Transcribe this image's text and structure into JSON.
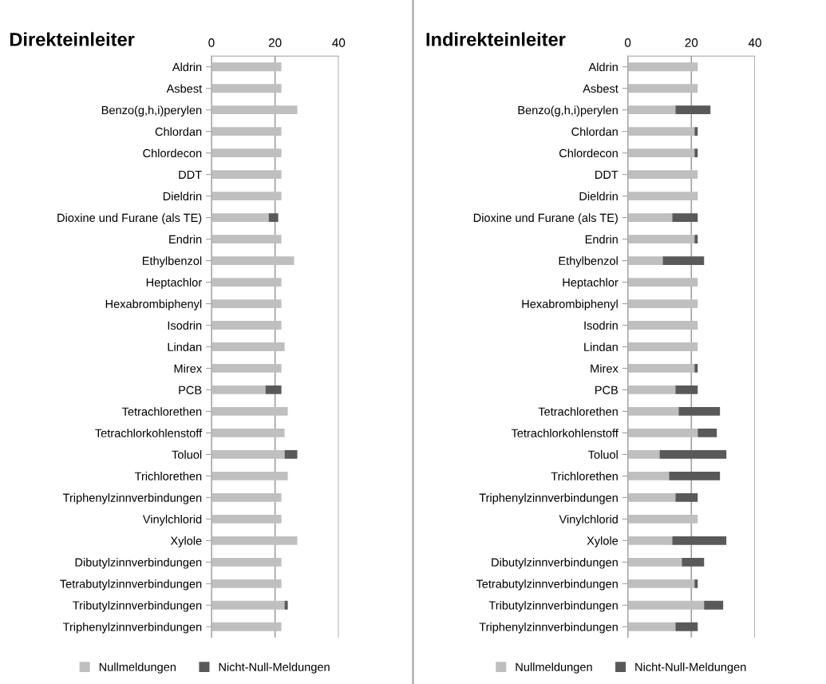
{
  "chart_data": [
    {
      "type": "bar",
      "title": "Direkteinleiter",
      "orientation": "horizontal",
      "stacked": true,
      "grid": "x",
      "legend": "bottom",
      "categories": [
        "Aldrin",
        "Asbest",
        "Benzo(g,h,i)perylen",
        "Chlordan",
        "Chlordecon",
        "DDT",
        "Dieldrin",
        "Dioxine und Furane (als TE)",
        "Endrin",
        "Ethylbenzol",
        "Heptachlor",
        "Hexabrombiphenyl",
        "Isodrin",
        "Lindan",
        "Mirex",
        "PCB",
        "Tetrachlorethen",
        "Tetrachlorkohlenstoff",
        "Toluol",
        "Trichlorethen",
        "Triphenylzinnverbindungen",
        "Vinylchlorid",
        "Xylole",
        "Dibutylzinnverbindungen",
        "Tetrabutylzinnverbindungen",
        "Tributylzinnverbindungen",
        "Triphenylzinnverbindungen"
      ],
      "xlim": [
        0,
        40
      ],
      "xticks": [
        0,
        20,
        40
      ],
      "series": [
        {
          "name": "Nullmeldungen",
          "color": "#bfbfbf",
          "values": [
            22,
            22,
            27,
            22,
            22,
            22,
            22,
            18,
            22,
            26,
            22,
            22,
            22,
            23,
            22,
            17,
            24,
            23,
            23,
            24,
            22,
            22,
            27,
            22,
            22,
            23,
            22
          ]
        },
        {
          "name": "Nicht-Null-Meldungen",
          "color": "#595959",
          "values": [
            0,
            0,
            0,
            0,
            0,
            0,
            0,
            3,
            0,
            0,
            0,
            0,
            0,
            0,
            0,
            5,
            0,
            0,
            4,
            0,
            0,
            0,
            0,
            0,
            0,
            1,
            0
          ]
        }
      ]
    },
    {
      "type": "bar",
      "title": "Indirekteinleiter",
      "orientation": "horizontal",
      "stacked": true,
      "grid": "x",
      "legend": "bottom",
      "categories": [
        "Aldrin",
        "Asbest",
        "Benzo(g,h,i)perylen",
        "Chlordan",
        "Chlordecon",
        "DDT",
        "Dieldrin",
        "Dioxine und Furane (als TE)",
        "Endrin",
        "Ethylbenzol",
        "Heptachlor",
        "Hexabrombiphenyl",
        "Isodrin",
        "Lindan",
        "Mirex",
        "PCB",
        "Tetrachlorethen",
        "Tetrachlorkohlenstoff",
        "Toluol",
        "Trichlorethen",
        "Triphenylzinnverbindungen",
        "Vinylchlorid",
        "Xylole",
        "Dibutylzinnverbindungen",
        "Tetrabutylzinnverbindungen",
        "Tributylzinnverbindungen",
        "Triphenylzinnverbindungen"
      ],
      "xlim": [
        0,
        40
      ],
      "xticks": [
        0,
        20,
        40
      ],
      "series": [
        {
          "name": "Nullmeldungen",
          "color": "#bfbfbf",
          "values": [
            22,
            22,
            15,
            21,
            21,
            22,
            22,
            14,
            21,
            11,
            22,
            22,
            22,
            22,
            21,
            15,
            16,
            22,
            10,
            13,
            15,
            22,
            14,
            17,
            21,
            24,
            15
          ]
        },
        {
          "name": "Nicht-Null-Meldungen",
          "color": "#595959",
          "values": [
            0,
            0,
            11,
            1,
            1,
            0,
            0,
            8,
            1,
            13,
            0,
            0,
            0,
            0,
            1,
            7,
            13,
            6,
            21,
            16,
            7,
            0,
            17,
            7,
            1,
            6,
            7
          ]
        }
      ]
    }
  ]
}
